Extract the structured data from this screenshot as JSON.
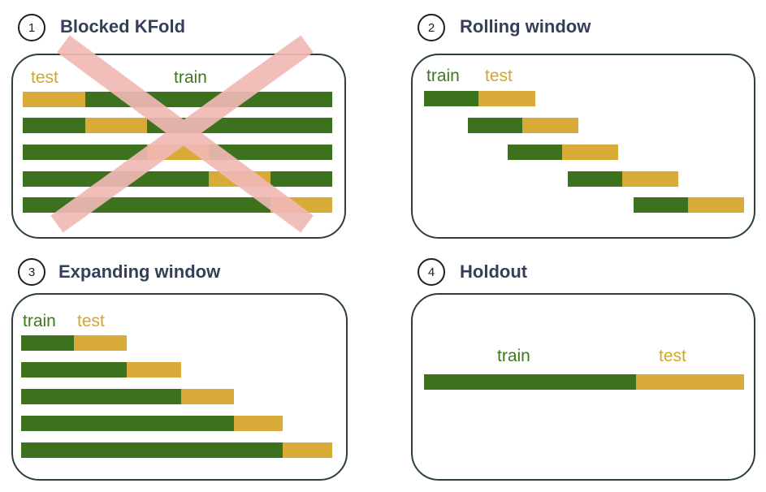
{
  "colors": {
    "train": "#3c721e",
    "test": "#d8ab38",
    "frame": "#2c3f3c",
    "title": "#34405a",
    "cross": "#f0b9b4"
  },
  "panels": [
    {
      "number": "1",
      "title": "Blocked KFold",
      "label_train": "train",
      "label_test": "test",
      "crossed_out": true
    },
    {
      "number": "2",
      "title": "Rolling window",
      "label_train": "train",
      "label_test": "test"
    },
    {
      "number": "3",
      "title": "Expanding window",
      "label_train": "train",
      "label_test": "test"
    },
    {
      "number": "4",
      "title": "Holdout",
      "label_train": "train",
      "label_test": "test"
    }
  ]
}
